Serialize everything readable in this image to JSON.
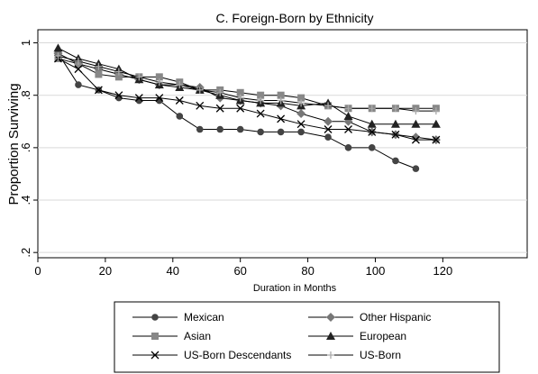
{
  "chart_data": {
    "type": "line",
    "title": "C. Foreign-Born by Ethnicity",
    "xlabel": "Duration in Months",
    "ylabel": "Proportion Surviving",
    "xlim": [
      0,
      145
    ],
    "ylim": [
      0.18,
      1.05
    ],
    "xticks": [
      0,
      20,
      40,
      60,
      80,
      100,
      120
    ],
    "yticks": [
      0.2,
      0.4,
      0.6,
      0.8,
      1.0
    ],
    "ytick_labels": [
      ".2",
      ".4",
      ".6",
      ".8",
      "1"
    ],
    "grid": "horizontal",
    "legend": "bottom",
    "series": [
      {
        "name": "Mexican",
        "marker": "circle",
        "color": "#444444",
        "x": [
          6,
          12,
          18,
          24,
          30,
          36,
          42,
          48,
          54,
          60,
          66,
          72,
          78,
          86,
          92,
          99,
          106,
          112
        ],
        "y": [
          0.96,
          0.84,
          0.82,
          0.79,
          0.78,
          0.78,
          0.72,
          0.67,
          0.67,
          0.67,
          0.66,
          0.66,
          0.66,
          0.64,
          0.6,
          0.6,
          0.55,
          0.52
        ]
      },
      {
        "name": "Other Hispanic",
        "marker": "diamond",
        "color": "#777777",
        "x": [
          6,
          12,
          18,
          24,
          30,
          36,
          42,
          48,
          54,
          60,
          66,
          72,
          78,
          86,
          92,
          99,
          106,
          112,
          118
        ],
        "y": [
          0.96,
          0.92,
          0.9,
          0.88,
          0.86,
          0.84,
          0.84,
          0.83,
          0.79,
          0.78,
          0.77,
          0.76,
          0.73,
          0.7,
          0.7,
          0.66,
          0.65,
          0.64,
          0.63
        ]
      },
      {
        "name": "Asian",
        "marker": "square",
        "color": "#888888",
        "x": [
          6,
          12,
          18,
          24,
          30,
          36,
          42,
          48,
          54,
          60,
          66,
          72,
          78,
          86,
          92,
          99,
          106,
          112,
          118
        ],
        "y": [
          0.94,
          0.92,
          0.88,
          0.87,
          0.87,
          0.87,
          0.85,
          0.82,
          0.82,
          0.81,
          0.8,
          0.8,
          0.79,
          0.76,
          0.75,
          0.75,
          0.75,
          0.75,
          0.75
        ]
      },
      {
        "name": "European",
        "marker": "triangle",
        "color": "#222222",
        "x": [
          6,
          12,
          18,
          24,
          30,
          36,
          42,
          48,
          54,
          60,
          66,
          72,
          78,
          86,
          92,
          99,
          106,
          112,
          118
        ],
        "y": [
          0.98,
          0.94,
          0.92,
          0.9,
          0.86,
          0.84,
          0.83,
          0.82,
          0.8,
          0.78,
          0.77,
          0.77,
          0.76,
          0.77,
          0.72,
          0.69,
          0.69,
          0.69,
          0.69
        ]
      },
      {
        "name": "US-Born Descendants",
        "marker": "x",
        "color": "#000000",
        "x": [
          6,
          12,
          18,
          24,
          30,
          36,
          42,
          48,
          54,
          60,
          66,
          72,
          78,
          86,
          92,
          99,
          106,
          112,
          118
        ],
        "y": [
          0.94,
          0.9,
          0.82,
          0.8,
          0.79,
          0.79,
          0.78,
          0.76,
          0.75,
          0.75,
          0.73,
          0.71,
          0.69,
          0.67,
          0.67,
          0.66,
          0.65,
          0.63,
          0.63
        ]
      },
      {
        "name": "US-Born",
        "marker": "plus",
        "color": "#aaaaaa",
        "x": [
          6,
          12,
          18,
          24,
          30,
          36,
          42,
          48,
          54,
          60,
          66,
          72,
          78,
          86,
          92,
          99,
          106,
          112,
          118
        ],
        "y": [
          0.95,
          0.93,
          0.91,
          0.89,
          0.87,
          0.85,
          0.84,
          0.82,
          0.81,
          0.79,
          0.78,
          0.78,
          0.77,
          0.76,
          0.75,
          0.75,
          0.75,
          0.74,
          0.74
        ]
      }
    ]
  }
}
